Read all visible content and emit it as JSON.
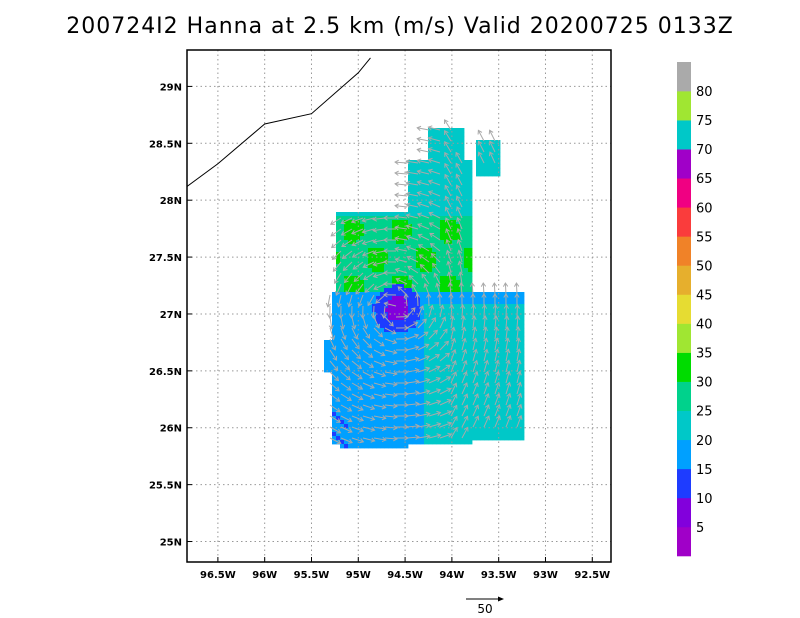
{
  "title": "200724I2 Hanna at 2.5 km (m/s) Valid 20200725 0133Z",
  "map": {
    "lon_range": [
      -96.83,
      -92.3
    ],
    "lat_range": [
      24.82,
      29.32
    ],
    "lon_ticks": [
      {
        "value": -96.5,
        "label": "96.5W"
      },
      {
        "value": -96.0,
        "label": "96W"
      },
      {
        "value": -95.5,
        "label": "95.5W"
      },
      {
        "value": -95.0,
        "label": "95W"
      },
      {
        "value": -94.5,
        "label": "94.5W"
      },
      {
        "value": -94.0,
        "label": "94W"
      },
      {
        "value": -93.5,
        "label": "93.5W"
      },
      {
        "value": -93.0,
        "label": "93W"
      },
      {
        "value": -92.5,
        "label": "92.5W"
      }
    ],
    "lat_ticks": [
      {
        "value": 29.0,
        "label": "29N"
      },
      {
        "value": 28.5,
        "label": "28.5N"
      },
      {
        "value": 28.0,
        "label": "28N"
      },
      {
        "value": 27.5,
        "label": "27.5N"
      },
      {
        "value": 27.0,
        "label": "27N"
      },
      {
        "value": 26.5,
        "label": "26.5N"
      },
      {
        "value": 26.0,
        "label": "26N"
      },
      {
        "value": 25.5,
        "label": "25.5N"
      },
      {
        "value": 25.0,
        "label": "25N"
      }
    ],
    "grid": "dotted",
    "coastline": [
      [
        -96.83,
        28.12
      ],
      [
        -96.5,
        28.32
      ],
      [
        -96.0,
        28.67
      ],
      [
        -95.5,
        28.76
      ],
      [
        -95.0,
        29.12
      ],
      [
        -94.87,
        29.25
      ]
    ],
    "center": {
      "lon": -94.6,
      "lat": 27.06
    }
  },
  "colorbar": {
    "levels": [
      {
        "label": "5",
        "color": "#a000c8"
      },
      {
        "label": "10",
        "color": "#8200dc"
      },
      {
        "label": "15",
        "color": "#1e3cff"
      },
      {
        "label": "20",
        "color": "#00a0ff"
      },
      {
        "label": "25",
        "color": "#00c8c8"
      },
      {
        "label": "30",
        "color": "#00d28c"
      },
      {
        "label": "35",
        "color": "#00dc00"
      },
      {
        "label": "40",
        "color": "#a0e632"
      },
      {
        "label": "45",
        "color": "#e6dc32"
      },
      {
        "label": "50",
        "color": "#e6af2d"
      },
      {
        "label": "55",
        "color": "#f08228"
      },
      {
        "label": "60",
        "color": "#fa3c3c"
      },
      {
        "label": "65",
        "color": "#f00082"
      },
      {
        "label": "70",
        "color": "#a000c8"
      },
      {
        "label": "75",
        "color": "#00c8c8"
      },
      {
        "label": "80",
        "color": "#a0e632"
      },
      {
        "label": "",
        "color": "#aaaaaa"
      }
    ]
  },
  "reference_vector": {
    "label": "50",
    "speed": 50
  },
  "colors": {
    "vector": "#a9a9a9",
    "coast": "#000000",
    "grid": "#999999"
  }
}
